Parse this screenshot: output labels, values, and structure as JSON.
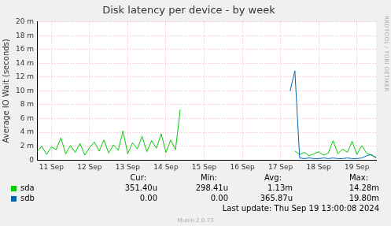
{
  "chart_data": {
    "type": "line",
    "title": "Disk latency per device - by week",
    "y_label": "Average IO Wait (seconds)",
    "categories": [
      null,
      null,
      null,
      "11 Sep",
      null,
      null,
      null,
      null,
      null,
      null,
      null,
      "12 Sep",
      null,
      null,
      null,
      null,
      null,
      null,
      null,
      "13 Sep",
      null,
      null,
      null,
      null,
      null,
      null,
      null,
      "14 Sep",
      null,
      null,
      null,
      null,
      null,
      null,
      null,
      "15 Sep",
      null,
      null,
      null,
      null,
      null,
      null,
      null,
      "16 Sep",
      null,
      null,
      null,
      null,
      null,
      null,
      null,
      "17 Sep",
      null,
      null,
      null,
      null,
      null,
      null,
      null,
      "18 Sep",
      null,
      null,
      null,
      null,
      null,
      null,
      null,
      "19 Sep",
      null,
      null,
      null,
      null
    ],
    "series": [
      {
        "name": "sda",
        "color": "#00cc00",
        "values": [
          0.0012,
          0.002,
          0.0008,
          0.0019,
          0.0015,
          0.0032,
          0.0009,
          0.0021,
          0.0011,
          0.0024,
          0.0007,
          0.0018,
          0.0026,
          0.0013,
          0.0029,
          0.001,
          0.0022,
          0.0014,
          0.0042,
          0.0009,
          0.0025,
          0.0016,
          0.0034,
          0.0012,
          0.0028,
          0.0017,
          0.0038,
          0.0011,
          0.0029,
          0.0015,
          0.0073,
          null,
          null,
          null,
          null,
          null,
          null,
          null,
          null,
          null,
          null,
          null,
          null,
          null,
          null,
          null,
          null,
          null,
          null,
          null,
          null,
          null,
          null,
          null,
          0.0013,
          0.0008,
          0.0011,
          0.0006,
          0.0009,
          0.0012,
          0.0007,
          0.001,
          0.0028,
          0.0009,
          0.0016,
          0.0011,
          0.0027,
          0.0008,
          0.0021,
          0.001,
          0.0007,
          0.0004
        ],
        "stats": [
          "351.40u",
          "298.41u",
          "1.13m",
          "14.28m"
        ]
      },
      {
        "name": "sdb",
        "color": "#0066b3",
        "values": [
          null,
          null,
          null,
          null,
          null,
          null,
          null,
          null,
          null,
          null,
          null,
          null,
          null,
          null,
          null,
          null,
          null,
          null,
          null,
          null,
          null,
          null,
          null,
          null,
          null,
          null,
          null,
          null,
          null,
          null,
          null,
          null,
          null,
          null,
          null,
          null,
          null,
          null,
          null,
          null,
          null,
          null,
          null,
          null,
          null,
          null,
          null,
          null,
          null,
          null,
          null,
          null,
          null,
          0.01,
          0.0129,
          0.0003,
          0.0002,
          0.0003,
          0.0002,
          0.0002,
          0.0003,
          0.0002,
          0.0003,
          0.0002,
          0.0002,
          0.0003,
          0.0002,
          0.0002,
          0.0003,
          0.0006,
          0.0008,
          0.0003
        ],
        "stats": [
          "0.00",
          "0.00",
          "365.87u",
          "19.80m"
        ]
      }
    ],
    "stats_columns": [
      "Cur:",
      "Min:",
      "Avg:",
      "Max:"
    ],
    "ylim": [
      0,
      0.02
    ],
    "yticks": [
      0,
      {
        "value": 0.002,
        "label": "2 m"
      },
      {
        "value": 0.004,
        "label": "4 m"
      },
      {
        "value": 0.006,
        "label": "6 m"
      },
      {
        "value": 0.008,
        "label": "8 m"
      },
      {
        "value": 0.01,
        "label": "10 m"
      },
      {
        "value": 0.012,
        "label": "12 m"
      },
      {
        "value": 0.014,
        "label": "14 m"
      },
      {
        "value": 0.016,
        "label": "16 m"
      },
      {
        "value": 0.018,
        "label": "18 m"
      },
      {
        "value": 0.02,
        "label": "20 m"
      }
    ],
    "grid": true,
    "last_update": "Last update: Thu Sep 19 13:00:08 2024",
    "footer": "Munin 2.0.73",
    "side_text": "RRDTOOL / TOBI OETIKER"
  }
}
